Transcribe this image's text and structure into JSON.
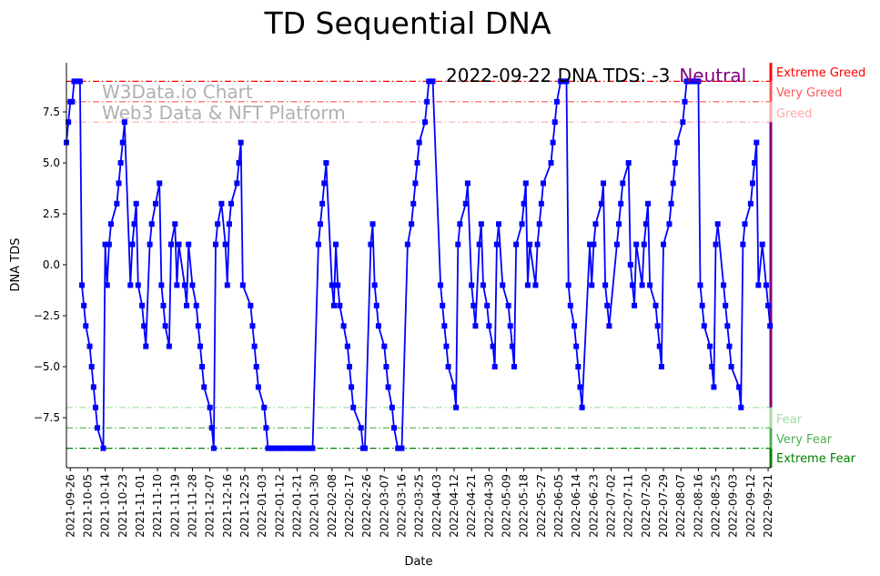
{
  "chart_data": {
    "type": "line",
    "title": "TD Sequential DNA",
    "xlabel": "Date",
    "ylabel": "DNA TDS",
    "ylim": [
      -9.5,
      9.9
    ],
    "yticks": [
      -7.5,
      -5.0,
      -2.5,
      0.0,
      2.5,
      5.0,
      7.5
    ],
    "ytick_labels": [
      "−7.5",
      "−5.0",
      "−2.5",
      "0.0",
      "2.5",
      "5.0",
      "7.5"
    ],
    "xticks": [
      "2021-09-26",
      "2021-10-05",
      "2021-10-14",
      "2021-10-23",
      "2021-11-01",
      "2021-11-10",
      "2021-11-19",
      "2021-11-28",
      "2021-12-07",
      "2021-12-16",
      "2021-12-25",
      "2022-01-03",
      "2022-01-12",
      "2022-01-21",
      "2022-01-30",
      "2022-02-08",
      "2022-02-17",
      "2022-02-26",
      "2022-03-07",
      "2022-03-16",
      "2022-03-25",
      "2022-04-03",
      "2022-04-12",
      "2022-04-21",
      "2022-04-30",
      "2022-05-09",
      "2022-05-18",
      "2022-05-27",
      "2022-06-05",
      "2022-06-14",
      "2022-06-23",
      "2022-07-02",
      "2022-07-11",
      "2022-07-20",
      "2022-07-29",
      "2022-08-07",
      "2022-08-16",
      "2022-08-25",
      "2022-09-03",
      "2022-09-12",
      "2022-09-21"
    ],
    "series_color": "#0000ff",
    "points": [
      [
        0,
        6
      ],
      [
        1,
        7
      ],
      [
        2,
        8
      ],
      [
        3,
        8
      ],
      [
        4,
        9
      ],
      [
        5,
        9
      ],
      [
        6,
        9
      ],
      [
        7,
        9
      ],
      [
        8,
        -1
      ],
      [
        9,
        -2
      ],
      [
        10,
        -3
      ],
      [
        12,
        -4
      ],
      [
        13,
        -5
      ],
      [
        14,
        -6
      ],
      [
        15,
        -7
      ],
      [
        16,
        -8
      ],
      [
        19,
        -9
      ],
      [
        20,
        1
      ],
      [
        21,
        -1
      ],
      [
        22,
        1
      ],
      [
        23,
        2
      ],
      [
        26,
        3
      ],
      [
        27,
        4
      ],
      [
        28,
        5
      ],
      [
        29,
        6
      ],
      [
        30,
        7
      ],
      [
        33,
        -1
      ],
      [
        34,
        1
      ],
      [
        35,
        2
      ],
      [
        36,
        3
      ],
      [
        37,
        -1
      ],
      [
        39,
        -2
      ],
      [
        40,
        -3
      ],
      [
        41,
        -4
      ],
      [
        43,
        1
      ],
      [
        44,
        2
      ],
      [
        46,
        3
      ],
      [
        48,
        4
      ],
      [
        49,
        -1
      ],
      [
        50,
        -2
      ],
      [
        51,
        -3
      ],
      [
        53,
        -4
      ],
      [
        54,
        1
      ],
      [
        56,
        2
      ],
      [
        57,
        -1
      ],
      [
        58,
        1
      ],
      [
        61,
        -1
      ],
      [
        62,
        -2
      ],
      [
        63,
        1
      ],
      [
        65,
        -1
      ],
      [
        67,
        -2
      ],
      [
        68,
        -3
      ],
      [
        69,
        -4
      ],
      [
        70,
        -5
      ],
      [
        71,
        -6
      ],
      [
        74,
        -7
      ],
      [
        75,
        -8
      ],
      [
        76,
        -9
      ],
      [
        77,
        1
      ],
      [
        78,
        2
      ],
      [
        80,
        3
      ],
      [
        82,
        1
      ],
      [
        83,
        -1
      ],
      [
        84,
        2
      ],
      [
        85,
        3
      ],
      [
        88,
        4
      ],
      [
        89,
        5
      ],
      [
        90,
        6
      ],
      [
        91,
        -1
      ],
      [
        95,
        -2
      ],
      [
        96,
        -3
      ],
      [
        97,
        -4
      ],
      [
        98,
        -5
      ],
      [
        99,
        -6
      ],
      [
        102,
        -7
      ],
      [
        103,
        -8
      ],
      [
        104,
        -9
      ],
      [
        105,
        -9
      ],
      [
        106,
        -9
      ],
      [
        107,
        -9
      ],
      [
        108,
        -9
      ],
      [
        109,
        -9
      ],
      [
        110,
        -9
      ],
      [
        111,
        -9
      ],
      [
        112,
        -9
      ],
      [
        113,
        -9
      ],
      [
        115,
        -9
      ],
      [
        116,
        -9
      ],
      [
        117,
        -9
      ],
      [
        118,
        -9
      ],
      [
        119,
        -9
      ],
      [
        120,
        -9
      ],
      [
        121,
        -9
      ],
      [
        122,
        -9
      ],
      [
        123,
        -9
      ],
      [
        124,
        -9
      ],
      [
        125,
        -9
      ],
      [
        126,
        -9
      ],
      [
        127,
        -9
      ],
      [
        130,
        1
      ],
      [
        131,
        2
      ],
      [
        132,
        3
      ],
      [
        133,
        4
      ],
      [
        134,
        5
      ],
      [
        137,
        -1
      ],
      [
        138,
        -2
      ],
      [
        139,
        1
      ],
      [
        140,
        -1
      ],
      [
        141,
        -2
      ],
      [
        143,
        -3
      ],
      [
        145,
        -4
      ],
      [
        146,
        -5
      ],
      [
        147,
        -6
      ],
      [
        148,
        -7
      ],
      [
        152,
        -8
      ],
      [
        153,
        -9
      ],
      [
        154,
        -9
      ],
      [
        157,
        1
      ],
      [
        158,
        2
      ],
      [
        159,
        -1
      ],
      [
        160,
        -2
      ],
      [
        161,
        -3
      ],
      [
        164,
        -4
      ],
      [
        165,
        -5
      ],
      [
        166,
        -6
      ],
      [
        168,
        -7
      ],
      [
        169,
        -8
      ],
      [
        171,
        -9
      ],
      [
        172,
        -9
      ],
      [
        173,
        -9
      ],
      [
        176,
        1
      ],
      [
        178,
        2
      ],
      [
        179,
        3
      ],
      [
        180,
        4
      ],
      [
        181,
        5
      ],
      [
        182,
        6
      ],
      [
        185,
        7
      ],
      [
        186,
        8
      ],
      [
        187,
        9
      ],
      [
        188,
        9
      ],
      [
        189,
        9
      ],
      [
        193,
        -1
      ],
      [
        194,
        -2
      ],
      [
        195,
        -3
      ],
      [
        196,
        -4
      ],
      [
        197,
        -5
      ],
      [
        200,
        -6
      ],
      [
        201,
        -7
      ],
      [
        202,
        1
      ],
      [
        203,
        2
      ],
      [
        206,
        3
      ],
      [
        207,
        4
      ],
      [
        209,
        -1
      ],
      [
        210,
        -2
      ],
      [
        211,
        -3
      ],
      [
        213,
        1
      ],
      [
        214,
        2
      ],
      [
        215,
        -1
      ],
      [
        217,
        -2
      ],
      [
        218,
        -3
      ],
      [
        220,
        -4
      ],
      [
        221,
        -5
      ],
      [
        222,
        1
      ],
      [
        223,
        2
      ],
      [
        225,
        -1
      ],
      [
        228,
        -2
      ],
      [
        229,
        -3
      ],
      [
        230,
        -4
      ],
      [
        231,
        -5
      ],
      [
        232,
        1
      ],
      [
        235,
        2
      ],
      [
        236,
        3
      ],
      [
        237,
        4
      ],
      [
        238,
        -1
      ],
      [
        239,
        1
      ],
      [
        242,
        -1
      ],
      [
        243,
        1
      ],
      [
        244,
        2
      ],
      [
        245,
        3
      ],
      [
        246,
        4
      ],
      [
        250,
        5
      ],
      [
        251,
        6
      ],
      [
        252,
        7
      ],
      [
        253,
        8
      ],
      [
        255,
        9
      ],
      [
        256,
        9
      ],
      [
        257,
        9
      ],
      [
        258,
        9
      ],
      [
        259,
        -1
      ],
      [
        260,
        -2
      ],
      [
        262,
        -3
      ],
      [
        263,
        -4
      ],
      [
        264,
        -5
      ],
      [
        265,
        -6
      ],
      [
        266,
        -7
      ],
      [
        270,
        1
      ],
      [
        271,
        -1
      ],
      [
        272,
        1
      ],
      [
        273,
        2
      ],
      [
        276,
        3
      ],
      [
        277,
        4
      ],
      [
        278,
        -1
      ],
      [
        279,
        -2
      ],
      [
        280,
        -3
      ],
      [
        284,
        1
      ],
      [
        285,
        2
      ],
      [
        286,
        3
      ],
      [
        287,
        4
      ],
      [
        290,
        5
      ],
      [
        291,
        0
      ],
      [
        292,
        -1
      ],
      [
        293,
        -2
      ],
      [
        294,
        1
      ],
      [
        297,
        -1
      ],
      [
        298,
        1
      ],
      [
        299,
        2
      ],
      [
        300,
        3
      ],
      [
        301,
        -1
      ],
      [
        304,
        -2
      ],
      [
        305,
        -3
      ],
      [
        306,
        -4
      ],
      [
        307,
        -5
      ],
      [
        308,
        1
      ],
      [
        311,
        2
      ],
      [
        312,
        3
      ],
      [
        313,
        4
      ],
      [
        314,
        5
      ],
      [
        315,
        6
      ],
      [
        318,
        7
      ],
      [
        319,
        8
      ],
      [
        320,
        9
      ],
      [
        321,
        9
      ],
      [
        322,
        9
      ],
      [
        323,
        9
      ],
      [
        324,
        9
      ],
      [
        325,
        9
      ],
      [
        326,
        9
      ],
      [
        327,
        -1
      ],
      [
        328,
        -2
      ],
      [
        329,
        -3
      ],
      [
        332,
        -4
      ],
      [
        333,
        -5
      ],
      [
        334,
        -6
      ],
      [
        335,
        1
      ],
      [
        336,
        2
      ],
      [
        339,
        -1
      ],
      [
        340,
        -2
      ],
      [
        341,
        -3
      ],
      [
        342,
        -4
      ],
      [
        343,
        -5
      ],
      [
        347,
        -6
      ],
      [
        348,
        -7
      ],
      [
        349,
        1
      ],
      [
        350,
        2
      ],
      [
        353,
        3
      ],
      [
        354,
        4
      ],
      [
        355,
        5
      ],
      [
        356,
        6
      ],
      [
        357,
        -1
      ],
      [
        359,
        1
      ],
      [
        361,
        -1
      ],
      [
        362,
        -2
      ],
      [
        363,
        -3
      ]
    ],
    "zones": [
      {
        "label": "Extreme Greed",
        "level": 9,
        "color": "#ff0000"
      },
      {
        "label": "Very Greed",
        "level": 8,
        "color": "#ff5555"
      },
      {
        "label": "Greed",
        "level": 7,
        "color": "#ffaaaa"
      },
      {
        "label": "Fear",
        "level": -7,
        "color": "#a3dba3"
      },
      {
        "label": "Very Fear",
        "level": -8,
        "color": "#4caf50"
      },
      {
        "label": "Extreme Fear",
        "level": -9,
        "color": "#008000"
      }
    ],
    "neutral_color": "#800080",
    "annotation": {
      "text": "2022-09-22 DNA TDS: -3",
      "state": "Neutral",
      "state_color": "#800080"
    },
    "watermark": [
      "W3Data.io Chart",
      "Web3 Data & NFT Platform"
    ]
  }
}
